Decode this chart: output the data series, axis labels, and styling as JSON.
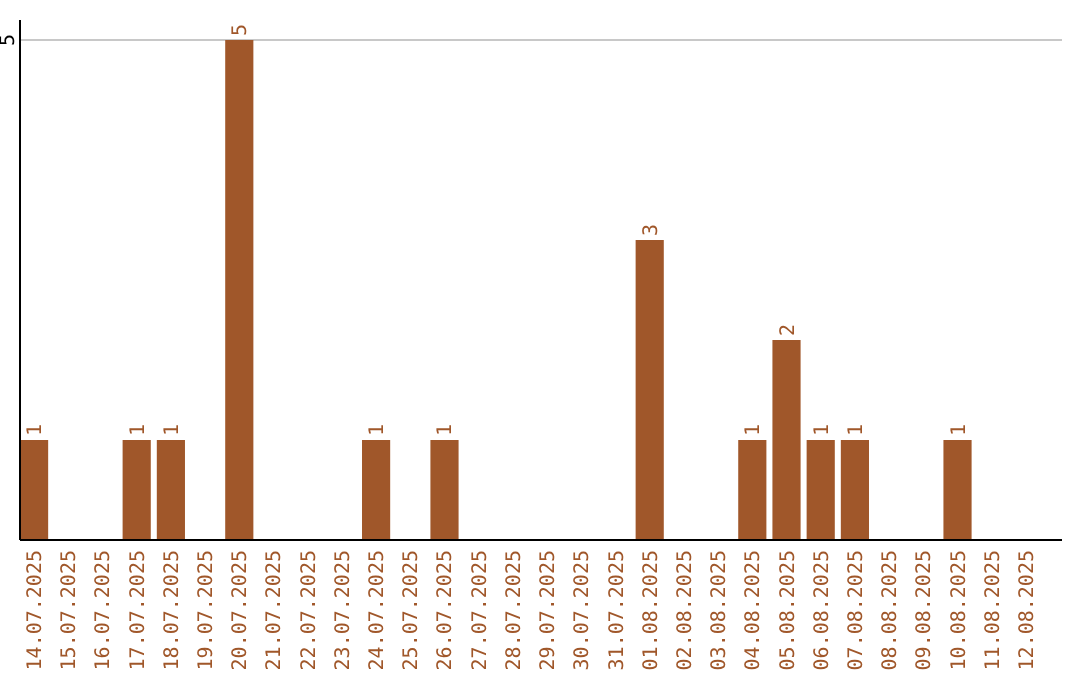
{
  "chart_data": {
    "type": "bar",
    "categories": [
      "14.07.2025",
      "15.07.2025",
      "16.07.2025",
      "17.07.2025",
      "18.07.2025",
      "19.07.2025",
      "20.07.2025",
      "21.07.2025",
      "22.07.2025",
      "23.07.2025",
      "24.07.2025",
      "25.07.2025",
      "26.07.2025",
      "27.07.2025",
      "28.07.2025",
      "29.07.2025",
      "30.07.2025",
      "31.07.2025",
      "01.08.2025",
      "02.08.2025",
      "03.08.2025",
      "04.08.2025",
      "05.08.2025",
      "06.08.2025",
      "07.08.2025",
      "08.08.2025",
      "09.08.2025",
      "10.08.2025",
      "11.08.2025",
      "12.08.2025"
    ],
    "values": [
      1,
      0,
      0,
      1,
      1,
      0,
      5,
      0,
      0,
      0,
      1,
      0,
      1,
      0,
      0,
      0,
      0,
      0,
      3,
      0,
      0,
      1,
      2,
      1,
      1,
      0,
      0,
      1,
      0,
      0
    ],
    "color": "#a0572a",
    "value_labels": [
      "1",
      null,
      null,
      "1",
      "1",
      null,
      "5",
      null,
      null,
      null,
      "1",
      null,
      "1",
      null,
      null,
      null,
      null,
      null,
      "3",
      null,
      null,
      "1",
      "2",
      "1",
      "1",
      null,
      null,
      "1",
      null,
      null
    ],
    "ylim": [
      0,
      5
    ],
    "yticks": [
      5
    ],
    "ref_lines": [
      {
        "axis": "y",
        "value": 5,
        "color": "#c8c8c8"
      }
    ]
  }
}
